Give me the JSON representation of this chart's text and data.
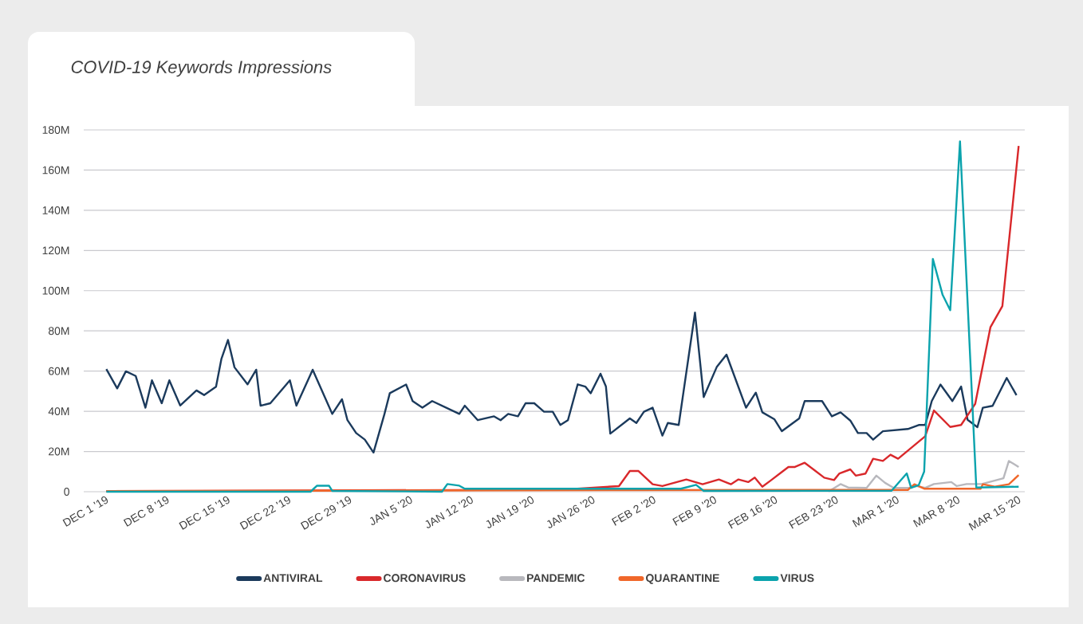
{
  "chart_data": {
    "type": "line",
    "title": "COVID-19 Keywords Impressions",
    "xlim": [
      "2019-11-28T09:36",
      "2020-03-15T17:00"
    ],
    "xticks": [
      {
        "value": "2019-12-01",
        "label": "DEC 1 '19"
      },
      {
        "value": "2019-12-08",
        "label": "DEC 8 '19"
      },
      {
        "value": "2019-12-15",
        "label": "DEC 15 '19"
      },
      {
        "value": "2019-12-22",
        "label": "DEC 22 '19"
      },
      {
        "value": "2019-12-29",
        "label": "DEC 29 '19"
      },
      {
        "value": "2020-01-05",
        "label": "JAN 5 '20"
      },
      {
        "value": "2020-01-12",
        "label": "JAN 12 '20"
      },
      {
        "value": "2020-01-19",
        "label": "JAN 19 '20"
      },
      {
        "value": "2020-01-26",
        "label": "JAN 26 '20"
      },
      {
        "value": "2020-02-02",
        "label": "FEB 2 '20"
      },
      {
        "value": "2020-02-09",
        "label": "FEB 9 '20"
      },
      {
        "value": "2020-02-16",
        "label": "FEB 16 '20"
      },
      {
        "value": "2020-02-23",
        "label": "FEB 23 '20"
      },
      {
        "value": "2020-03-01",
        "label": "MAR 1 '20"
      },
      {
        "value": "2020-03-08",
        "label": "MAR 8 '20"
      },
      {
        "value": "2020-03-15",
        "label": "MAR 15 '20"
      }
    ],
    "ylim": [
      0,
      180
    ],
    "yticks": [
      {
        "value": 0,
        "label": "0"
      },
      {
        "value": 20,
        "label": "20M"
      },
      {
        "value": 40,
        "label": "40M"
      },
      {
        "value": 60,
        "label": "60M"
      },
      {
        "value": 80,
        "label": "80M"
      },
      {
        "value": 100,
        "label": "100M"
      },
      {
        "value": 120,
        "label": "120M"
      },
      {
        "value": 140,
        "label": "140M"
      },
      {
        "value": 160,
        "label": "160M"
      },
      {
        "value": 180,
        "label": "180M"
      }
    ],
    "grid": "y",
    "legend": "bottom",
    "series": [
      {
        "name": "ANTIVIRAL",
        "color": "#1b3a5c",
        "x": [
          "2019-12-01T00:00",
          "2019-12-02T06:00",
          "2019-12-03T06:00",
          "2019-12-04T09:00",
          "2019-12-05T12:00",
          "2019-12-06T06:00",
          "2019-12-07T09:00",
          "2019-12-08T06:00",
          "2019-12-09T12:00",
          "2019-12-11T09:00",
          "2019-12-12T06:00",
          "2019-12-13T15:00",
          "2019-12-14T06:00",
          "2019-12-15T00:00",
          "2019-12-15T18:00",
          "2019-12-17T06:00",
          "2019-12-18T06:00",
          "2019-12-18T18:00",
          "2019-12-19T21:00",
          "2019-12-22T03:00",
          "2019-12-22T21:00",
          "2019-12-24T18:00",
          "2019-12-27T00:00",
          "2019-12-28T03:00",
          "2019-12-28T18:00",
          "2019-12-29T18:00",
          "2019-12-30T18:00",
          "2019-12-31T18:00",
          "2020-01-02T00:00",
          "2020-01-02T15:00",
          "2020-01-04T12:00",
          "2020-01-05T06:00",
          "2020-01-06T09:00",
          "2020-01-07T12:00",
          "2020-01-10T15:00",
          "2020-01-11T06:00",
          "2020-01-12T18:00",
          "2020-01-14T15:00",
          "2020-01-15T09:00",
          "2020-01-16T06:00",
          "2020-01-17T09:00",
          "2020-01-18T06:00",
          "2020-01-19T06:00",
          "2020-01-20T09:00",
          "2020-01-21T09:00",
          "2020-01-22T06:00",
          "2020-01-23T03:00",
          "2020-01-24T06:00",
          "2020-01-25T03:00",
          "2020-01-25T18:00",
          "2020-01-26T21:00",
          "2020-01-27T12:00",
          "2020-01-28T00:00",
          "2020-01-30T06:00",
          "2020-01-31T00:00",
          "2020-01-31T21:00",
          "2020-02-01T21:00",
          "2020-02-03T00:00",
          "2020-02-03T15:00",
          "2020-02-04T21:00",
          "2020-02-06T18:00",
          "2020-02-07T18:00",
          "2020-02-09T06:00",
          "2020-02-10T09:00",
          "2020-02-12T15:00",
          "2020-02-13T18:00",
          "2020-02-14T12:00",
          "2020-02-15T21:00",
          "2020-02-16T18:00",
          "2020-02-18T18:00",
          "2020-02-19T09:00",
          "2020-02-21T09:00",
          "2020-02-22T12:00",
          "2020-02-23T12:00",
          "2020-02-24T15:00",
          "2020-02-25T12:00",
          "2020-02-26T12:00",
          "2020-02-27T06:00",
          "2020-02-28T09:00",
          "2020-03-02T06:00",
          "2020-03-03T12:00",
          "2020-03-04T06:00",
          "2020-03-05T00:00",
          "2020-03-06T00:00",
          "2020-03-07T09:00",
          "2020-03-08T09:00",
          "2020-03-09T03:00",
          "2020-03-10T06:00",
          "2020-03-10T21:00",
          "2020-03-12T00:00",
          "2020-03-13T15:00",
          "2020-03-14T18:00"
        ],
        "values": [
          61,
          51.4,
          59.9,
          57.6,
          41.8,
          55.4,
          44,
          55.4,
          42.9,
          50.4,
          48.1,
          52.2,
          66.2,
          75.5,
          61.9,
          53.4,
          60.7,
          42.8,
          44,
          55.4,
          42.8,
          60.7,
          38.7,
          46,
          35.6,
          29.2,
          25.9,
          19.5,
          38.5,
          49,
          53.3,
          45.1,
          41.8,
          45.1,
          38.7,
          42.8,
          35.6,
          37.5,
          35.6,
          38.7,
          37.5,
          44,
          44,
          39.8,
          39.8,
          33.2,
          35.6,
          53.4,
          52.3,
          49,
          58.7,
          52.3,
          28.9,
          36.5,
          34.2,
          39.8,
          41.8,
          27.9,
          34.2,
          33.2,
          89.1,
          47.1,
          62,
          68.2,
          41.8,
          49.3,
          39.5,
          36.1,
          30.1,
          36.5,
          45.1,
          45.1,
          37.5,
          39.5,
          35.4,
          29.2,
          29.2,
          25.9,
          30.1,
          31.2,
          33.2,
          33.2,
          45.1,
          53.3,
          45.1,
          52.3,
          35.8,
          32.1,
          41.8,
          42.7,
          56.6,
          48
        ]
      },
      {
        "name": "CORONAVIRUS",
        "color": "#d9282b",
        "x": [
          "2019-12-01T00:00",
          "2020-01-22T09:00",
          "2020-01-29T00:00",
          "2020-01-30T06:00",
          "2020-01-31T06:00",
          "2020-02-01T21:00",
          "2020-02-03T00:00",
          "2020-02-05T18:00",
          "2020-02-07T15:00",
          "2020-02-09T12:00",
          "2020-02-10T21:00",
          "2020-02-11T18:00",
          "2020-02-12T21:00",
          "2020-02-13T15:00",
          "2020-02-14T12:00",
          "2020-02-15T12:00",
          "2020-02-16T15:00",
          "2020-02-17T12:00",
          "2020-02-18T06:00",
          "2020-02-19T09:00",
          "2020-02-20T12:00",
          "2020-02-21T15:00",
          "2020-02-22T18:00",
          "2020-02-23T09:00",
          "2020-02-24T15:00",
          "2020-02-25T06:00",
          "2020-02-26T09:00",
          "2020-02-27T06:00",
          "2020-02-28T09:00",
          "2020-02-29T06:00",
          "2020-03-01T03:00",
          "2020-03-04T06:00",
          "2020-03-05T06:00",
          "2020-03-07T03:00",
          "2020-03-08T09:00",
          "2020-03-10T00:00",
          "2020-03-11T18:00",
          "2020-03-13T03:00",
          "2020-03-15T00:00"
        ],
        "values": [
          0.3,
          1,
          2.8,
          10.3,
          10.3,
          3.7,
          2.8,
          6.1,
          3.7,
          6.1,
          3.7,
          6.1,
          4.8,
          7,
          2.5,
          5.7,
          9.4,
          12.3,
          12.3,
          14.4,
          10.7,
          7,
          5.8,
          9.1,
          11.1,
          8,
          9,
          16.4,
          15.3,
          18.4,
          16.4,
          27.6,
          40.4,
          32.2,
          33.2,
          43.7,
          81.8,
          92.3,
          172
        ]
      },
      {
        "name": "PANDEMIC",
        "color": "#b8b8bd",
        "x": [
          "2020-02-22T03:00",
          "2020-02-23T12:00",
          "2020-02-24T09:00",
          "2020-02-26T12:00",
          "2020-02-27T15:00",
          "2020-02-28T15:00",
          "2020-02-29T15:00",
          "2020-03-02T09:00",
          "2020-03-03T06:00",
          "2020-03-04T06:00",
          "2020-03-05T06:00",
          "2020-03-07T06:00",
          "2020-03-07T21:00",
          "2020-03-09T00:00",
          "2020-03-10T18:00",
          "2020-03-13T06:00",
          "2020-03-13T21:00",
          "2020-03-15T00:00"
        ],
        "values": [
          0.1,
          3.8,
          2.1,
          1.9,
          8.0,
          4.4,
          1.9,
          1.9,
          2.8,
          1.9,
          3.8,
          4.8,
          2.8,
          3.8,
          3.8,
          6.7,
          15.3,
          12.3
        ]
      },
      {
        "name": "QUARANTINE",
        "color": "#f0672a",
        "x": [
          "2019-12-01T00:00",
          "2020-01-30T00:00",
          "2020-03-02T06:00",
          "2020-03-03T00:00",
          "2020-03-04T03:00",
          "2020-03-10T15:00",
          "2020-03-10T21:00",
          "2020-03-12T06:00",
          "2020-03-13T21:00",
          "2020-03-15T00:00"
        ],
        "values": [
          0.3,
          0.8,
          0.9,
          3.7,
          1.5,
          1.5,
          3.7,
          2.5,
          3.7,
          8.3
        ]
      },
      {
        "name": "VIRUS",
        "color": "#0ba3ad",
        "x": [
          "2019-12-01T00:00",
          "2019-12-24T12:00",
          "2019-12-25T06:00",
          "2019-12-26T15:00",
          "2019-12-27T00:00",
          "2020-01-08T15:00",
          "2020-01-09T06:00",
          "2020-01-10T15:00",
          "2020-01-11T06:00",
          "2020-02-05T03:00",
          "2020-02-06T21:00",
          "2020-02-07T18:00",
          "2020-02-29T09:00",
          "2020-03-02T03:00",
          "2020-03-02T15:00",
          "2020-03-03T12:00",
          "2020-03-04T03:00",
          "2020-03-05T03:00",
          "2020-03-06T06:00",
          "2020-03-07T03:00",
          "2020-03-08T06:00",
          "2020-03-10T03:00",
          "2020-03-15T00:00"
        ],
        "values": [
          0,
          0,
          3,
          3,
          0.4,
          0,
          3.8,
          3,
          1.5,
          1.5,
          3.4,
          0.4,
          0.5,
          9.1,
          1.9,
          3.3,
          10,
          115.8,
          97.9,
          90.3,
          174.3,
          2.1,
          2.5
        ]
      }
    ]
  }
}
